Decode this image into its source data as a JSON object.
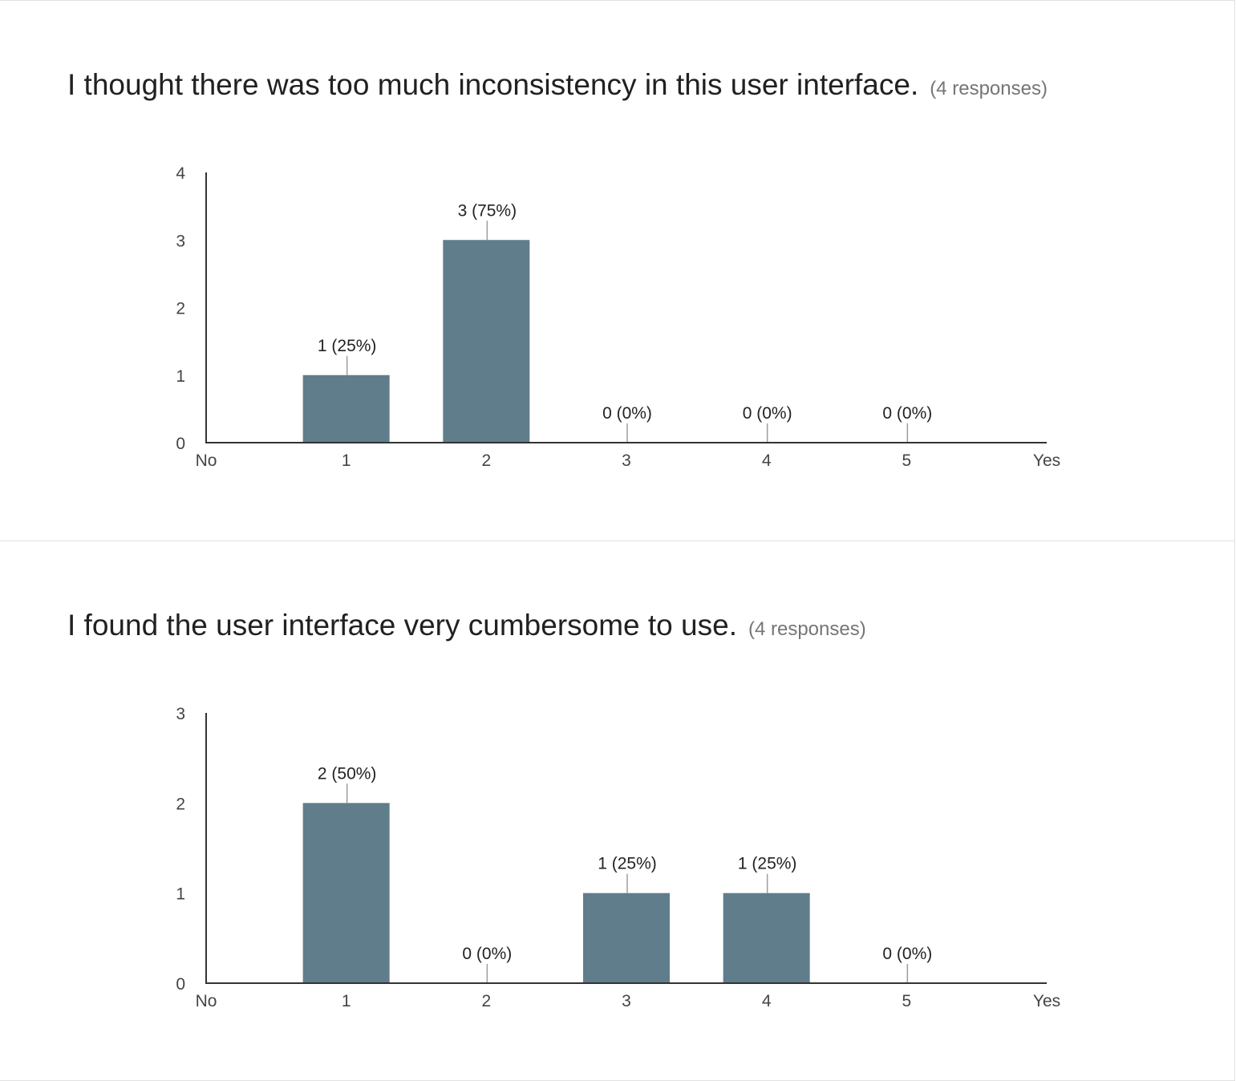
{
  "colors": {
    "bar": "#607d8b",
    "axis": "#333333",
    "leader": "#9e9e9e"
  },
  "questions": [
    {
      "title": "I thought there was too much inconsistency in this user interface.",
      "responses": "(4 responses)"
    },
    {
      "title": "I found the user interface very cumbersome to use.",
      "responses": "(4 responses)"
    }
  ],
  "chart_data": [
    {
      "type": "bar",
      "title": "I thought there was too much inconsistency in this user interface.",
      "x_tick_labels": [
        "No",
        "1",
        "2",
        "3",
        "4",
        "5",
        "Yes"
      ],
      "categories": [
        "1",
        "2",
        "3",
        "4",
        "5"
      ],
      "values": [
        1,
        3,
        0,
        0,
        0
      ],
      "data_labels": [
        "1 (25%)",
        "3 (75%)",
        "0 (0%)",
        "0 (0%)",
        "0 (0%)"
      ],
      "y_ticks": [
        "0",
        "1",
        "2",
        "3",
        "4"
      ],
      "ylim": [
        0,
        4
      ],
      "grid": false,
      "legend": "none"
    },
    {
      "type": "bar",
      "title": "I found the user interface very cumbersome to use.",
      "x_tick_labels": [
        "No",
        "1",
        "2",
        "3",
        "4",
        "5",
        "Yes"
      ],
      "categories": [
        "1",
        "2",
        "3",
        "4",
        "5"
      ],
      "values": [
        2,
        0,
        1,
        1,
        0
      ],
      "data_labels": [
        "2 (50%)",
        "0 (0%)",
        "1 (25%)",
        "1 (25%)",
        "0 (0%)"
      ],
      "y_ticks": [
        "0",
        "1",
        "2",
        "3"
      ],
      "ylim": [
        0,
        3
      ],
      "grid": false,
      "legend": "none"
    }
  ]
}
